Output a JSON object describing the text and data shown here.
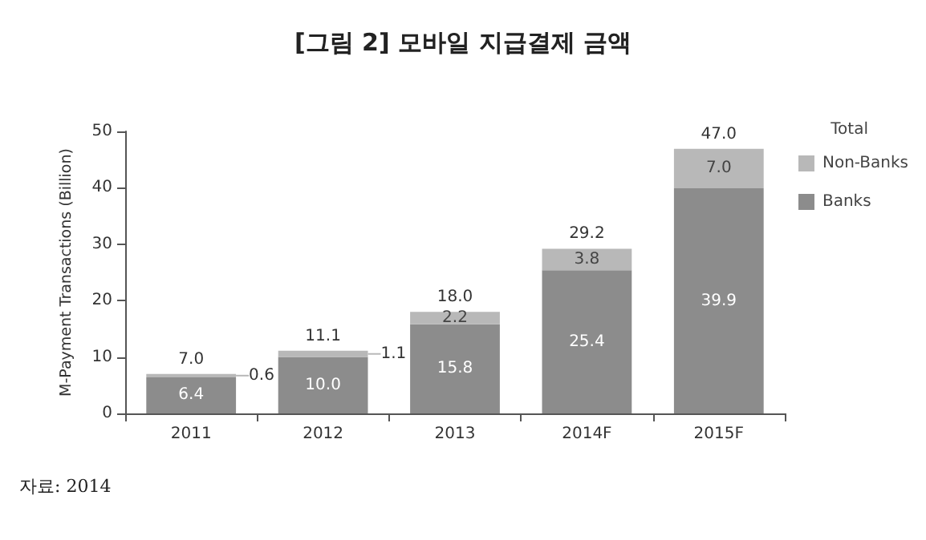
{
  "chart_data": {
    "type": "bar",
    "title": "[그림 2] 모바일 지급결제 금액",
    "ylabel": "M-Payment Transactions (Billion)",
    "categories": [
      "2011",
      "2012",
      "2013",
      "2014F",
      "2015F"
    ],
    "series": [
      {
        "name": "Banks",
        "color": "#8c8c8c",
        "values": [
          6.4,
          10.0,
          15.8,
          25.4,
          39.9
        ],
        "value_labels": [
          "6.4",
          "10.0",
          "15.8",
          "25.4",
          "39.9"
        ]
      },
      {
        "name": "Non-Banks",
        "color": "#b8b8b8",
        "values": [
          0.6,
          1.1,
          2.2,
          3.8,
          7.0
        ],
        "value_labels": [
          "0.6",
          "1.1",
          "2.2",
          "3.8",
          "7.0"
        ]
      }
    ],
    "stacked": true,
    "totals": [
      "7.0",
      "11.1",
      "18.0",
      "29.2",
      "47.0"
    ],
    "legend_title": "Total",
    "legend": "right",
    "ylim": [
      0,
      50
    ],
    "yticks": [
      0,
      10,
      20,
      30,
      40,
      50
    ],
    "grid": false,
    "annotations": [
      "자료: 2014"
    ]
  }
}
